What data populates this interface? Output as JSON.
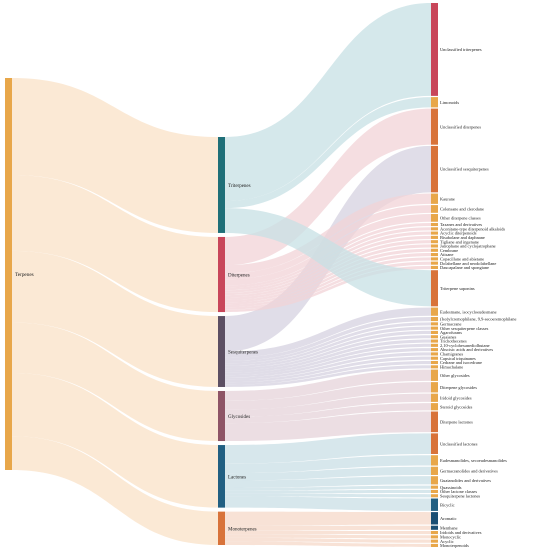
{
  "colors": {
    "root": "#e8a74a",
    "root_flow": "#fbe8d3",
    "triterpenes": "#1f6f78",
    "triterpenes_flow": "#c7e0e4",
    "diterpenes": "#c8465a",
    "diterpenes_flow": "#f1d3d7",
    "sesquiterpenes": "#5c4f63",
    "sesquiterpenes_flow": "#d6d2e0",
    "glycosides": "#8e5466",
    "glycosides_flow": "#e6d3d9",
    "lactones": "#215f82",
    "lactones_flow": "#c9dfe6",
    "monoterpenes": "#d8733a",
    "monoterpenes_flow": "#f6d8c8",
    "leaf": "#e8a74a"
  },
  "root": {
    "label": "Terpenes"
  },
  "categories": [
    {
      "key": "triterpenes",
      "label": "Triterpenes",
      "value": 23
    },
    {
      "key": "diterpenes",
      "label": "Diterpenes",
      "value": 18
    },
    {
      "key": "sesquiterpenes",
      "label": "Sesquiterpenes",
      "value": 17
    },
    {
      "key": "glycosides",
      "label": "Glycosides",
      "value": 12
    },
    {
      "key": "lactones",
      "label": "Lactones",
      "value": 15
    },
    {
      "key": "monoterpenes",
      "label": "Monoterpenes",
      "value": 8
    }
  ],
  "leaves": [
    {
      "label": "Unclassified triterpenes",
      "value": 18,
      "from": "triterpenes",
      "color": "#c8465a"
    },
    {
      "label": "Limonoids",
      "value": 2,
      "from": "triterpenes"
    },
    {
      "label": "Unclassified diterpenes",
      "value": 7,
      "from": "diterpenes",
      "color": "#d8733a"
    },
    {
      "label": "Unclassified sesquiterpenes",
      "value": 9,
      "from": "sesquiterpenes",
      "color": "#d8733a"
    },
    {
      "label": "Kaurane",
      "value": 2,
      "from": "diterpenes"
    },
    {
      "label": "Colensane and clerodane",
      "value": 1.5,
      "from": "diterpenes"
    },
    {
      "label": "Other diterpene classes",
      "value": 1.5,
      "from": "diterpenes"
    },
    {
      "label": "Taxanes and derivatives",
      "value": 0.6,
      "from": "diterpenes"
    },
    {
      "label": "Aconitane-type diterpenoid alkaloids",
      "value": 0.6,
      "from": "diterpenes"
    },
    {
      "label": "Acyclic diterpenoids",
      "value": 0.6,
      "from": "diterpenes"
    },
    {
      "label": "Bisabolane and daphnane",
      "value": 0.6,
      "from": "diterpenes"
    },
    {
      "label": "Tigliane and ingenane",
      "value": 0.6,
      "from": "diterpenes"
    },
    {
      "label": "Jatrophane and cyclojatrophane",
      "value": 0.6,
      "from": "diterpenes"
    },
    {
      "label": "Cembrane",
      "value": 0.6,
      "from": "diterpenes"
    },
    {
      "label": "Atisane",
      "value": 0.6,
      "from": "diterpenes"
    },
    {
      "label": "Copacillane and abietane",
      "value": 0.6,
      "from": "diterpenes"
    },
    {
      "label": "Dolabellane and neodolabellane",
      "value": 0.6,
      "from": "diterpenes"
    },
    {
      "label": "Daucapalane and spongiane",
      "value": 0.6,
      "from": "diterpenes"
    },
    {
      "label": "Triterpene saponins",
      "value": 7,
      "from": "triterpenes",
      "color": "#d8733a"
    },
    {
      "label": "Eudesmane, isocycloeudesmane",
      "value": 1.6,
      "from": "sesquiterpenes"
    },
    {
      "label": "(Iso)ylcremophilane, 9,9-secoeremophilane",
      "value": 0.8,
      "from": "sesquiterpenes"
    },
    {
      "label": "Germacrane",
      "value": 0.6,
      "from": "sesquiterpenes"
    },
    {
      "label": "Other sesquiterpene classes",
      "value": 0.6,
      "from": "sesquiterpenes"
    },
    {
      "label": "Agarofurans",
      "value": 0.6,
      "from": "sesquiterpenes"
    },
    {
      "label": "Guaianes",
      "value": 0.6,
      "from": "sesquiterpenes"
    },
    {
      "label": "Trichothecenes",
      "value": 0.6,
      "from": "sesquiterpenes"
    },
    {
      "label": "2,10-cyclohexanediolbutane",
      "value": 0.6,
      "from": "sesquiterpenes"
    },
    {
      "label": "Abscisic acids and derivatives",
      "value": 0.6,
      "from": "sesquiterpenes"
    },
    {
      "label": "Chamigranes",
      "value": 0.6,
      "from": "sesquiterpenes"
    },
    {
      "label": "Capsical triquinanes",
      "value": 0.6,
      "from": "sesquiterpenes"
    },
    {
      "label": "Cedrane and isocedrane",
      "value": 0.6,
      "from": "sesquiterpenes"
    },
    {
      "label": "Himachalane",
      "value": 0.6,
      "from": "sesquiterpenes"
    },
    {
      "label": "Other glycosides",
      "value": 2.2,
      "from": "glycosides"
    },
    {
      "label": "Diterpene glycosides",
      "value": 2,
      "from": "glycosides"
    },
    {
      "label": "Iridoid glycosides",
      "value": 1.6,
      "from": "glycosides"
    },
    {
      "label": "Steroid glycosides",
      "value": 1.4,
      "from": "glycosides"
    },
    {
      "label": "Diterpene lactones",
      "value": 4,
      "from": "glycosides",
      "color": "#d8733a"
    },
    {
      "label": "Unclassified lactones",
      "value": 4,
      "from": "lactones",
      "color": "#d8733a"
    },
    {
      "label": "Eudesmanolides, secoeudesmanolides",
      "value": 2,
      "from": "lactones"
    },
    {
      "label": "Germacranolides and derivatives",
      "value": 1.6,
      "from": "lactones"
    },
    {
      "label": "Guaianolides and derivatives",
      "value": 1.6,
      "from": "lactones"
    },
    {
      "label": "Quassinoids",
      "value": 0.6,
      "from": "lactones"
    },
    {
      "label": "Other lactone classes",
      "value": 0.6,
      "from": "lactones"
    },
    {
      "label": "Sesquiterpene lactones",
      "value": 0.6,
      "from": "lactones"
    },
    {
      "label": "Bicyclic",
      "value": 2.4,
      "from": "lactones",
      "color": "#215f82"
    },
    {
      "label": "Aromatic",
      "value": 2.4,
      "from": "monoterpenes",
      "color": "#1a4e73"
    },
    {
      "label": "Menthane",
      "value": 0.8,
      "from": "monoterpenes",
      "color": "#1a4e73"
    },
    {
      "label": "Iridoids and derivatives",
      "value": 0.6,
      "from": "monoterpenes"
    },
    {
      "label": "Monocyclic",
      "value": 0.6,
      "from": "monoterpenes"
    },
    {
      "label": "Acyclic",
      "value": 0.6,
      "from": "monoterpenes"
    },
    {
      "label": "Monoterpenoids",
      "value": 0.6,
      "from": "monoterpenes"
    }
  ]
}
